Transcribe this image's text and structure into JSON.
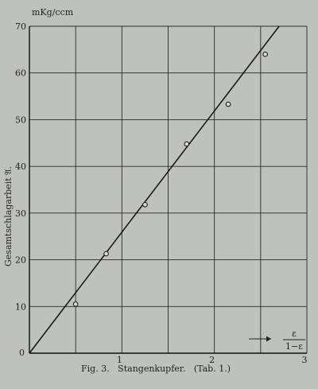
{
  "caption": "Fig. 3.   Stangenkupfer.   (Tab. 1.)",
  "chart_data": {
    "type": "scatter",
    "title": "",
    "ylabel": "Gesamtschlagarbeit 𝔄.",
    "yunit": "mKg/ccm",
    "xlabel_numerator": "ε",
    "xlabel_denominator": "1−ε",
    "xlim": [
      0,
      3
    ],
    "ylim": [
      0,
      70
    ],
    "x_ticks": [
      1,
      2,
      3
    ],
    "y_ticks": [
      0,
      10,
      20,
      30,
      40,
      50,
      60,
      70
    ],
    "origin_label": "0",
    "x_grid_step": 0.5,
    "grid": true,
    "series": [
      {
        "points": [
          {
            "x": 0.5,
            "y": 10.5
          },
          {
            "x": 0.83,
            "y": 21.3
          },
          {
            "x": 1.25,
            "y": 31.8
          },
          {
            "x": 1.7,
            "y": 44.8
          },
          {
            "x": 2.15,
            "y": 53.3
          },
          {
            "x": 2.55,
            "y": 64.0
          }
        ]
      }
    ],
    "fit_line": {
      "x0": 0,
      "y0": 0,
      "x1": 2.7,
      "y1": 70
    }
  }
}
